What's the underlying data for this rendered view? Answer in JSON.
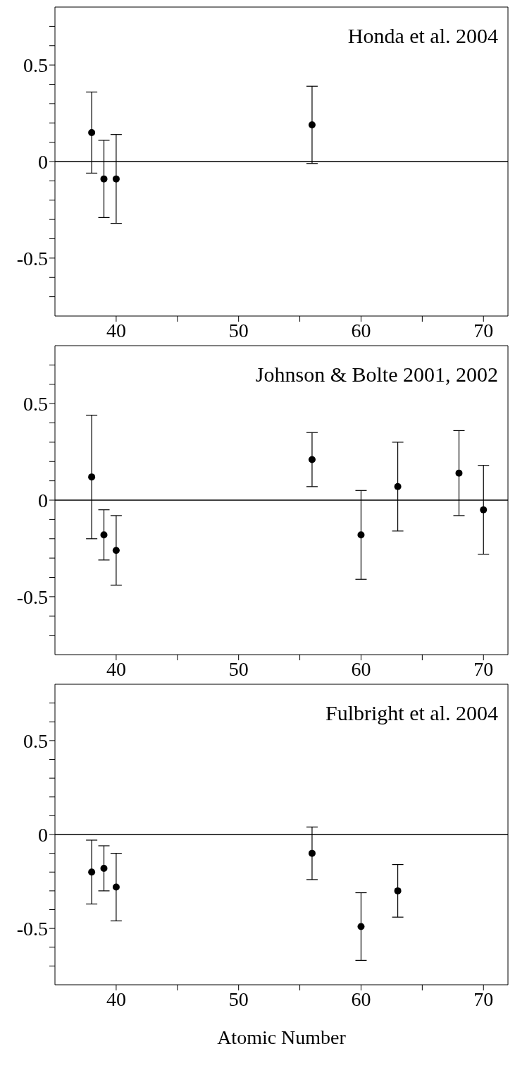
{
  "chart_data": [
    {
      "type": "scatter",
      "annotations": [
        "Honda et al. 2004"
      ],
      "x": [
        38,
        39,
        40,
        56
      ],
      "xlim": [
        35,
        72
      ],
      "ylim": [
        -0.8,
        0.8
      ],
      "xticks": [
        40,
        {
          "value": 45,
          "label": null
        },
        50,
        {
          "value": 55,
          "label": null
        },
        60,
        {
          "value": 65,
          "label": null
        },
        70
      ],
      "yticks": [
        {
          "value": -0.7,
          "label": null
        },
        {
          "value": -0.6,
          "label": null
        },
        -0.5,
        {
          "value": -0.4,
          "label": null
        },
        {
          "value": -0.3,
          "label": null
        },
        {
          "value": -0.2,
          "label": null
        },
        {
          "value": -0.1,
          "label": null
        },
        0,
        {
          "value": 0.1,
          "label": null
        },
        {
          "value": 0.2,
          "label": null
        },
        {
          "value": 0.3,
          "label": null
        },
        {
          "value": 0.4,
          "label": null
        },
        0.5,
        {
          "value": 0.6,
          "label": null
        },
        {
          "value": 0.7,
          "label": null
        }
      ],
      "series": [
        {
          "color": "#000000",
          "values": [
            0.15,
            -0.09,
            -0.09,
            0.19
          ],
          "errors": [
            0.21,
            0.2,
            0.23,
            0.2
          ]
        }
      ],
      "ref_lines": [
        {
          "axis": "y",
          "value": 0,
          "color": "#000000"
        }
      ],
      "marker": "circle",
      "grid": false,
      "legend": false
    },
    {
      "type": "scatter",
      "annotations": [
        "Johnson & Bolte 2001, 2002"
      ],
      "x": [
        38,
        39,
        40,
        56,
        60,
        63,
        68,
        70
      ],
      "xlim": [
        35,
        72
      ],
      "ylim": [
        -0.8,
        0.8
      ],
      "xticks": [
        40,
        {
          "value": 45,
          "label": null
        },
        50,
        {
          "value": 55,
          "label": null
        },
        60,
        {
          "value": 65,
          "label": null
        },
        70
      ],
      "yticks": [
        {
          "value": -0.7,
          "label": null
        },
        {
          "value": -0.6,
          "label": null
        },
        -0.5,
        {
          "value": -0.4,
          "label": null
        },
        {
          "value": -0.3,
          "label": null
        },
        {
          "value": -0.2,
          "label": null
        },
        {
          "value": -0.1,
          "label": null
        },
        0,
        {
          "value": 0.1,
          "label": null
        },
        {
          "value": 0.2,
          "label": null
        },
        {
          "value": 0.3,
          "label": null
        },
        {
          "value": 0.4,
          "label": null
        },
        0.5,
        {
          "value": 0.6,
          "label": null
        },
        {
          "value": 0.7,
          "label": null
        }
      ],
      "series": [
        {
          "color": "#000000",
          "values": [
            0.12,
            -0.18,
            -0.26,
            0.21,
            -0.18,
            0.07,
            0.14,
            -0.05
          ],
          "errors": [
            0.32,
            0.13,
            0.18,
            0.14,
            0.23,
            0.23,
            0.22,
            0.23
          ]
        }
      ],
      "ref_lines": [
        {
          "axis": "y",
          "value": 0,
          "color": "#000000"
        }
      ],
      "marker": "circle",
      "grid": false,
      "legend": false
    },
    {
      "type": "scatter",
      "annotations": [
        "Fulbright et al. 2004"
      ],
      "xlabel": "Atomic Number",
      "x": [
        38,
        39,
        40,
        56,
        60,
        63
      ],
      "xlim": [
        35,
        72
      ],
      "ylim": [
        -0.8,
        0.8
      ],
      "xticks": [
        40,
        {
          "value": 45,
          "label": null
        },
        50,
        {
          "value": 55,
          "label": null
        },
        60,
        {
          "value": 65,
          "label": null
        },
        70
      ],
      "yticks": [
        {
          "value": -0.7,
          "label": null
        },
        {
          "value": -0.6,
          "label": null
        },
        -0.5,
        {
          "value": -0.4,
          "label": null
        },
        {
          "value": -0.3,
          "label": null
        },
        {
          "value": -0.2,
          "label": null
        },
        {
          "value": -0.1,
          "label": null
        },
        0,
        {
          "value": 0.1,
          "label": null
        },
        {
          "value": 0.2,
          "label": null
        },
        {
          "value": 0.3,
          "label": null
        },
        {
          "value": 0.4,
          "label": null
        },
        0.5,
        {
          "value": 0.6,
          "label": null
        },
        {
          "value": 0.7,
          "label": null
        }
      ],
      "series": [
        {
          "color": "#000000",
          "values": [
            -0.2,
            -0.18,
            -0.28,
            -0.1,
            -0.49,
            -0.3
          ],
          "errors": [
            0.17,
            0.12,
            0.18,
            0.14,
            0.18,
            0.14
          ]
        }
      ],
      "ref_lines": [
        {
          "axis": "y",
          "value": 0,
          "color": "#000000"
        }
      ],
      "marker": "circle",
      "grid": false,
      "legend": false
    }
  ]
}
